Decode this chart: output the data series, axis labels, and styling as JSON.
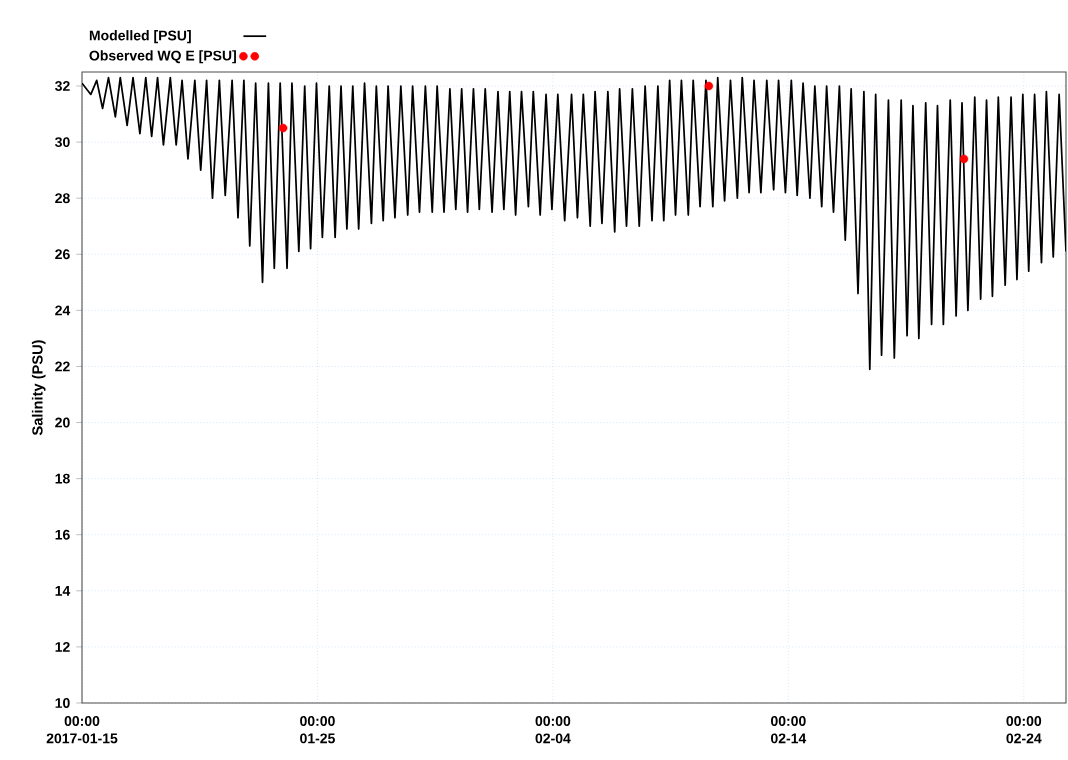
{
  "chart_data": {
    "type": "line",
    "ylabel": "Salinity (PSU)",
    "xlim": [
      "2017-01-15",
      "2017-02-25T19:00"
    ],
    "xticks": [
      {
        "value": "2017-01-15",
        "label": "00:00 2017-01-15"
      },
      {
        "value": "2017-01-25",
        "label": "00:00 01-25"
      },
      {
        "value": "2017-02-04",
        "label": "00:00 02-04"
      },
      {
        "value": "2017-02-14",
        "label": "00:00 02-14"
      },
      {
        "value": "2017-02-24",
        "label": "00:00 02-24"
      }
    ],
    "ylim": [
      10,
      32.5
    ],
    "yticks": [
      10,
      12,
      14,
      16,
      18,
      20,
      22,
      24,
      26,
      28,
      30,
      32
    ],
    "grid": true,
    "legend": "top left",
    "series": [
      {
        "name": "Modelled [PSU]",
        "color": "#000000",
        "x": [
          "2017-01-15T00:00",
          "2017-01-15T09:00",
          "2017-01-15T15:00",
          "2017-01-15T21:00",
          "2017-01-16T03:00",
          "2017-01-16T10:00",
          "2017-01-16T15:00",
          "2017-01-16T22:00",
          "2017-01-17T04:00",
          "2017-01-17T11:00",
          "2017-01-17T17:00",
          "2017-01-17T23:00",
          "2017-01-18T05:00",
          "2017-01-18T11:00",
          "2017-01-18T18:00",
          "2017-01-19T00:00",
          "2017-01-19T06:00",
          "2017-01-19T12:00",
          "2017-01-19T19:00",
          "2017-01-20T01:00",
          "2017-01-20T07:00",
          "2017-01-20T13:00",
          "2017-01-20T20:00",
          "2017-01-21T02:00",
          "2017-01-21T09:00",
          "2017-01-21T15:00",
          "2017-01-21T21:00",
          "2017-01-22T03:00",
          "2017-01-22T09:00",
          "2017-01-22T16:00",
          "2017-01-22T22:00",
          "2017-01-23T04:00",
          "2017-01-23T10:00",
          "2017-01-23T17:00",
          "2017-01-23T22:00",
          "2017-01-24T05:00",
          "2017-01-24T11:00",
          "2017-01-24T17:00",
          "2017-01-24T23:00",
          "2017-01-25T05:00",
          "2017-01-25T12:00",
          "2017-01-25T18:00",
          "2017-01-26T00:00",
          "2017-01-26T06:00",
          "2017-01-26T12:00",
          "2017-01-26T18:00",
          "2017-01-27T00:00",
          "2017-01-27T07:00",
          "2017-01-27T12:00",
          "2017-01-27T19:00",
          "2017-01-28T00:00",
          "2017-01-28T07:00",
          "2017-01-28T13:00",
          "2017-01-28T20:00",
          "2017-01-29T01:00",
          "2017-01-29T08:00",
          "2017-01-29T14:00",
          "2017-01-29T21:00",
          "2017-01-30T02:00",
          "2017-01-30T09:00",
          "2017-01-30T15:00",
          "2017-01-30T21:00",
          "2017-01-31T03:00",
          "2017-01-31T09:00",
          "2017-01-31T15:00",
          "2017-01-31T21:00",
          "2017-02-01T03:00",
          "2017-02-01T10:00",
          "2017-02-01T16:00",
          "2017-02-01T22:00",
          "2017-02-02T04:00",
          "2017-02-02T10:00",
          "2017-02-02T16:00",
          "2017-02-02T23:00",
          "2017-02-03T04:00",
          "2017-02-03T11:00",
          "2017-02-03T17:00",
          "2017-02-03T23:00",
          "2017-02-04T05:00",
          "2017-02-04T12:00",
          "2017-02-04T19:00",
          "2017-02-05T01:00",
          "2017-02-05T07:00",
          "2017-02-05T14:00",
          "2017-02-05T19:00",
          "2017-02-06T02:00",
          "2017-02-06T08:00",
          "2017-02-06T15:00",
          "2017-02-06T20:00",
          "2017-02-07T03:00",
          "2017-02-07T09:00",
          "2017-02-07T16:00",
          "2017-02-07T22:00",
          "2017-02-08T05:00",
          "2017-02-08T11:00",
          "2017-02-08T17:00",
          "2017-02-08T23:00",
          "2017-02-09T05:00",
          "2017-02-09T11:00",
          "2017-02-09T18:00",
          "2017-02-09T23:00",
          "2017-02-10T06:00",
          "2017-02-10T12:00",
          "2017-02-10T19:00",
          "2017-02-11T00:00",
          "2017-02-11T07:00",
          "2017-02-11T13:00",
          "2017-02-11T20:00",
          "2017-02-12T01:00",
          "2017-02-12T08:00",
          "2017-02-12T13:00",
          "2017-02-12T20:00",
          "2017-02-13T02:00",
          "2017-02-13T09:00",
          "2017-02-13T14:00",
          "2017-02-13T21:00",
          "2017-02-14T03:00",
          "2017-02-14T09:00",
          "2017-02-14T15:00",
          "2017-02-14T22:00",
          "2017-02-15T03:00",
          "2017-02-15T10:00",
          "2017-02-15T15:00",
          "2017-02-15T22:00",
          "2017-02-16T04:00",
          "2017-02-16T10:00",
          "2017-02-16T16:00",
          "2017-02-16T23:00",
          "2017-02-17T05:00",
          "2017-02-17T11:00",
          "2017-02-17T17:00",
          "2017-02-17T23:00",
          "2017-02-18T06:00",
          "2017-02-18T12:00",
          "2017-02-18T19:00",
          "2017-02-19T01:00",
          "2017-02-19T07:00",
          "2017-02-19T13:00",
          "2017-02-19T20:00",
          "2017-02-20T02:00",
          "2017-02-20T08:00",
          "2017-02-20T14:00",
          "2017-02-20T21:00",
          "2017-02-21T03:00",
          "2017-02-21T09:00",
          "2017-02-21T15:00",
          "2017-02-21T22:00",
          "2017-02-22T04:00",
          "2017-02-22T10:00",
          "2017-02-22T16:00",
          "2017-02-22T22:00",
          "2017-02-23T05:00",
          "2017-02-23T11:00",
          "2017-02-23T17:00",
          "2017-02-23T23:00",
          "2017-02-24T05:00",
          "2017-02-24T11:00",
          "2017-02-24T18:00",
          "2017-02-24T23:00",
          "2017-02-25T06:00",
          "2017-02-25T12:00",
          "2017-02-25T19:00"
        ],
        "values": [
          32.1,
          31.7,
          32.2,
          31.2,
          32.3,
          30.9,
          32.3,
          30.6,
          32.3,
          30.3,
          32.3,
          30.2,
          32.3,
          29.9,
          32.3,
          29.9,
          32.2,
          29.4,
          32.2,
          29.0,
          32.2,
          28.0,
          32.2,
          28.1,
          32.2,
          27.3,
          32.2,
          26.3,
          32.1,
          25.0,
          32.1,
          25.5,
          32.1,
          25.5,
          32.1,
          26.1,
          32.0,
          26.2,
          32.1,
          26.6,
          32.0,
          26.6,
          32.0,
          26.9,
          32.0,
          26.9,
          32.1,
          27.1,
          32.0,
          27.2,
          32.0,
          27.3,
          32.0,
          27.4,
          32.0,
          27.5,
          32.0,
          27.5,
          32.0,
          27.5,
          31.9,
          27.6,
          31.9,
          27.5,
          31.9,
          27.6,
          31.9,
          27.5,
          31.8,
          27.6,
          31.8,
          27.4,
          31.8,
          27.7,
          31.8,
          27.4,
          31.7,
          27.6,
          31.7,
          27.2,
          31.7,
          27.3,
          31.7,
          27.0,
          31.8,
          27.1,
          31.8,
          26.8,
          31.9,
          27.0,
          31.9,
          27.0,
          32.0,
          27.2,
          32.0,
          27.2,
          32.2,
          27.4,
          32.2,
          27.4,
          32.2,
          27.7,
          32.2,
          27.7,
          32.3,
          27.9,
          32.2,
          28.0,
          32.3,
          28.2,
          32.2,
          28.2,
          32.2,
          28.3,
          32.2,
          28.2,
          32.2,
          28.1,
          32.1,
          28.0,
          32.0,
          27.7,
          32.0,
          27.5,
          32.0,
          26.5,
          31.9,
          24.6,
          31.8,
          21.9,
          31.7,
          22.4,
          31.5,
          22.3,
          31.5,
          23.1,
          31.3,
          23.0,
          31.4,
          23.5,
          31.3,
          23.5,
          31.5,
          23.8,
          31.4,
          24.0,
          31.6,
          24.4,
          31.5,
          24.5,
          31.6,
          24.9,
          31.6,
          25.1,
          31.7,
          25.4,
          31.7,
          25.7,
          31.8,
          25.9,
          31.7,
          26.1
        ]
      },
      {
        "name": "Observed WQ E [PSU]",
        "type": "scatter",
        "color": "#ff0000",
        "x": [
          "2017-01-23T13:00",
          "2017-02-10T15:00",
          "2017-02-21T11:00"
        ],
        "values": [
          30.5,
          32.0,
          29.4
        ]
      }
    ]
  }
}
